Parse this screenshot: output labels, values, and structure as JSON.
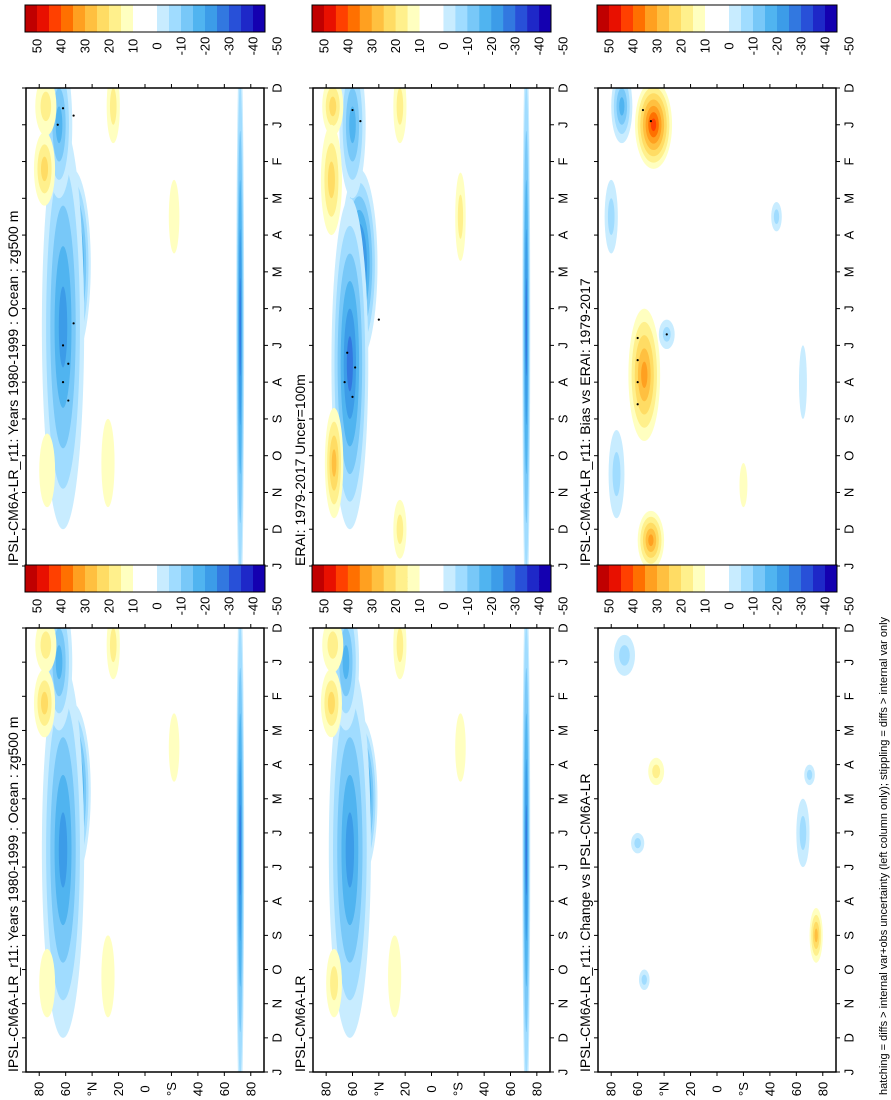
{
  "footnote": "hatching = diffs > internal var+obs uncertainty (left column only); stippling = diffs > internal var only",
  "colors": {
    "positive": [
      "#ffffc0",
      "#fff08c",
      "#ffdc64",
      "#ffc040",
      "#ffa020",
      "#ff7000",
      "#ff4000",
      "#e81000",
      "#c00000"
    ],
    "negative": [
      "#c8ecff",
      "#a0dcff",
      "#78c8f8",
      "#50b4f0",
      "#3c9ce8",
      "#3278e0",
      "#2850d8",
      "#1e28c8",
      "#1400b0"
    ]
  },
  "chart_data": [
    {
      "type": "heatmap",
      "title": "IPSL-CM6A-LR_r11: Years 1980-1999 : Ocean : zg500 m",
      "x_ticks": [
        "D",
        "J",
        "F",
        "M",
        "A",
        "M",
        "J",
        "J",
        "A",
        "S",
        "O",
        "N",
        "D",
        "J"
      ],
      "y_ticks": [
        "80",
        "60",
        "°N",
        "20",
        "0",
        "°S",
        "40",
        "60",
        "80"
      ],
      "colorbar_ticks": [
        "50",
        "40",
        "30",
        "20",
        "10",
        "0",
        "-10",
        "-20",
        "-30",
        "-40",
        "-50"
      ],
      "zlim": [
        -55,
        55
      ],
      "features": [
        {
          "month": 4.8,
          "lat": 55,
          "value": -40,
          "dmonth": 2.6,
          "dlat": 14
        },
        {
          "month": 6.5,
          "lat": 62,
          "value": -25,
          "dmonth": 5.5,
          "dlat": 16
        },
        {
          "month": 1.0,
          "lat": 65,
          "value": -20,
          "dmonth": 2.0,
          "dlat": 10
        },
        {
          "month": 0.5,
          "lat": 75,
          "value": 10,
          "dmonth": 0.8,
          "dlat": 8
        },
        {
          "month": 2.2,
          "lat": 76,
          "value": 15,
          "dmonth": 1.0,
          "dlat": 8
        },
        {
          "month": 10.4,
          "lat": 74,
          "value": 8,
          "dmonth": 1.0,
          "dlat": 6
        },
        {
          "month": 0.5,
          "lat": 24,
          "value": 10,
          "dmonth": 1.0,
          "dlat": 5
        },
        {
          "month": 10.2,
          "lat": 28,
          "value": 8,
          "dmonth": 1.2,
          "dlat": 5
        },
        {
          "month": 3.5,
          "lat": -22,
          "value": 8,
          "dmonth": 1.0,
          "dlat": 4
        },
        {
          "month": 6.5,
          "lat": -72,
          "value": -30,
          "dmonth": 8.0,
          "dlat": 3
        }
      ]
    },
    {
      "type": "heatmap",
      "title": "IPSL-CM6A-LR_r11: Years 1980-1999 : Ocean : zg500 m",
      "x_ticks": [
        "D",
        "J",
        "F",
        "M",
        "A",
        "M",
        "J",
        "J",
        "A",
        "S",
        "O",
        "N",
        "D",
        "J"
      ],
      "y_ticks": [
        "80",
        "60",
        "°N",
        "20",
        "0",
        "°S",
        "40",
        "60",
        "80"
      ],
      "colorbar_ticks": [
        "50",
        "40",
        "30",
        "20",
        "10",
        "0",
        "-10",
        "-20",
        "-30",
        "-40",
        "-50"
      ],
      "zlim": [
        -55,
        55
      ],
      "features": [
        {
          "month": 4.8,
          "lat": 55,
          "value": -40,
          "dmonth": 2.6,
          "dlat": 14
        },
        {
          "month": 6.5,
          "lat": 62,
          "value": -25,
          "dmonth": 5.5,
          "dlat": 16
        },
        {
          "month": 1.0,
          "lat": 65,
          "value": -20,
          "dmonth": 2.0,
          "dlat": 10
        },
        {
          "month": 0.5,
          "lat": 75,
          "value": 10,
          "dmonth": 0.8,
          "dlat": 8
        },
        {
          "month": 2.2,
          "lat": 76,
          "value": 15,
          "dmonth": 1.0,
          "dlat": 8
        },
        {
          "month": 10.4,
          "lat": 74,
          "value": 8,
          "dmonth": 1.0,
          "dlat": 6
        },
        {
          "month": 0.5,
          "lat": 24,
          "value": 10,
          "dmonth": 1.0,
          "dlat": 5
        },
        {
          "month": 10.2,
          "lat": 28,
          "value": 8,
          "dmonth": 1.2,
          "dlat": 5
        },
        {
          "month": 3.5,
          "lat": -22,
          "value": 8,
          "dmonth": 1.0,
          "dlat": 4
        },
        {
          "month": 6.5,
          "lat": -72,
          "value": -30,
          "dmonth": 8.0,
          "dlat": 3
        }
      ]
    },
    {
      "type": "heatmap",
      "title": "ERAI: 1979-2017 Uncer=100m",
      "x_ticks": [
        "D",
        "J",
        "F",
        "M",
        "A",
        "M",
        "J",
        "J",
        "A",
        "S",
        "O",
        "N",
        "D",
        "J"
      ],
      "y_ticks": [
        "80",
        "60",
        "°N",
        "20",
        "0",
        "°S",
        "40",
        "60",
        "80"
      ],
      "colorbar_ticks": [
        "50",
        "40",
        "30",
        "20",
        "10",
        "0",
        "-10",
        "-20",
        "-30",
        "-40",
        "-50"
      ],
      "zlim": [
        -55,
        55
      ],
      "features": [
        {
          "month": 4.8,
          "lat": 55,
          "value": -35,
          "dmonth": 2.6,
          "dlat": 14
        },
        {
          "month": 7.5,
          "lat": 62,
          "value": -30,
          "dmonth": 4.5,
          "dlat": 14
        },
        {
          "month": 1.0,
          "lat": 60,
          "value": -20,
          "dmonth": 2.0,
          "dlat": 10
        },
        {
          "month": 0.5,
          "lat": 75,
          "value": 15,
          "dmonth": 0.8,
          "dlat": 8
        },
        {
          "month": 2.5,
          "lat": 76,
          "value": 18,
          "dmonth": 1.5,
          "dlat": 8
        },
        {
          "month": 10.2,
          "lat": 74,
          "value": 22,
          "dmonth": 1.5,
          "dlat": 7
        },
        {
          "month": 0.5,
          "lat": 24,
          "value": 10,
          "dmonth": 1.0,
          "dlat": 5
        },
        {
          "month": 12.0,
          "lat": 24,
          "value": 10,
          "dmonth": 0.8,
          "dlat": 5
        },
        {
          "month": 3.5,
          "lat": -22,
          "value": 10,
          "dmonth": 1.2,
          "dlat": 4
        },
        {
          "month": 6.5,
          "lat": -72,
          "value": -30,
          "dmonth": 8.0,
          "dlat": 3
        }
      ]
    },
    {
      "type": "heatmap",
      "title": "IPSL-CM6A-LR",
      "x_ticks": [
        "D",
        "J",
        "F",
        "M",
        "A",
        "M",
        "J",
        "J",
        "A",
        "S",
        "O",
        "N",
        "D",
        "J"
      ],
      "y_ticks": [
        "80",
        "60",
        "°N",
        "20",
        "0",
        "°S",
        "40",
        "60",
        "80"
      ],
      "colorbar_ticks": [
        "50",
        "40",
        "30",
        "20",
        "10",
        "0",
        "-10",
        "-20",
        "-30",
        "-40",
        "-50"
      ],
      "zlim": [
        -55,
        55
      ],
      "features": [
        {
          "month": 5.0,
          "lat": 55,
          "value": -45,
          "dmonth": 2.4,
          "dlat": 14
        },
        {
          "month": 6.5,
          "lat": 62,
          "value": -25,
          "dmonth": 5.5,
          "dlat": 16
        },
        {
          "month": 1.0,
          "lat": 65,
          "value": -20,
          "dmonth": 2.0,
          "dlat": 10
        },
        {
          "month": 0.5,
          "lat": 75,
          "value": 10,
          "dmonth": 0.8,
          "dlat": 8
        },
        {
          "month": 2.2,
          "lat": 76,
          "value": 15,
          "dmonth": 1.0,
          "dlat": 8
        },
        {
          "month": 10.4,
          "lat": 74,
          "value": 10,
          "dmonth": 1.0,
          "dlat": 6
        },
        {
          "month": 0.5,
          "lat": 24,
          "value": 10,
          "dmonth": 1.0,
          "dlat": 5
        },
        {
          "month": 10.2,
          "lat": 28,
          "value": 8,
          "dmonth": 1.2,
          "dlat": 5
        },
        {
          "month": 3.5,
          "lat": -22,
          "value": 8,
          "dmonth": 1.0,
          "dlat": 4
        },
        {
          "month": 6.5,
          "lat": -72,
          "value": -30,
          "dmonth": 8.0,
          "dlat": 3
        }
      ]
    },
    {
      "type": "heatmap",
      "title": "IPSL-CM6A-LR_r11: Bias vs ERAI: 1979-2017",
      "x_ticks": [
        "D",
        "J",
        "F",
        "M",
        "A",
        "M",
        "J",
        "J",
        "A",
        "S",
        "O",
        "N",
        "D",
        "J"
      ],
      "y_ticks": [
        "80",
        "60",
        "°N",
        "20",
        "0",
        "°S",
        "40",
        "60",
        "80"
      ],
      "colorbar_ticks": [
        "50",
        "40",
        "30",
        "20",
        "10",
        "0",
        "-10",
        "-20",
        "-30",
        "-40",
        "-50"
      ],
      "zlim": [
        -55,
        55
      ],
      "features": [
        {
          "month": 1.0,
          "lat": 48,
          "value": 35,
          "dmonth": 1.2,
          "dlat": 14
        },
        {
          "month": 7.8,
          "lat": 55,
          "value": 25,
          "dmonth": 1.8,
          "dlat": 12
        },
        {
          "month": 12.3,
          "lat": 50,
          "value": 25,
          "dmonth": 0.8,
          "dlat": 10
        },
        {
          "month": 0.5,
          "lat": 72,
          "value": -20,
          "dmonth": 1.0,
          "dlat": 8
        },
        {
          "month": 3.5,
          "lat": 80,
          "value": -10,
          "dmonth": 1.0,
          "dlat": 5
        },
        {
          "month": 10.5,
          "lat": 76,
          "value": -12,
          "dmonth": 1.2,
          "dlat": 6
        },
        {
          "month": 6.7,
          "lat": 38,
          "value": -10,
          "dmonth": 0.4,
          "dlat": 6
        },
        {
          "month": 10.8,
          "lat": -20,
          "value": 8,
          "dmonth": 0.6,
          "dlat": 3
        },
        {
          "month": 3.5,
          "lat": -45,
          "value": -10,
          "dmonth": 0.4,
          "dlat": 4
        },
        {
          "month": 8.0,
          "lat": -65,
          "value": -8,
          "dmonth": 1.0,
          "dlat": 3
        }
      ]
    },
    {
      "type": "heatmap",
      "title": "IPSL-CM6A-LR_r11: Change vs IPSL-CM6A-LR",
      "x_ticks": [
        "D",
        "J",
        "F",
        "M",
        "A",
        "M",
        "J",
        "J",
        "A",
        "S",
        "O",
        "N",
        "D",
        "J"
      ],
      "y_ticks": [
        "80",
        "60",
        "°N",
        "20",
        "0",
        "°S",
        "40",
        "60",
        "80"
      ],
      "colorbar_ticks": [
        "50",
        "40",
        "30",
        "20",
        "10",
        "0",
        "-10",
        "-20",
        "-30",
        "-40",
        "-50"
      ],
      "zlim": [
        -55,
        55
      ],
      "features": [
        {
          "month": 0.8,
          "lat": 70,
          "value": -12,
          "dmonth": 0.6,
          "dlat": 8
        },
        {
          "month": 4.2,
          "lat": 46,
          "value": 10,
          "dmonth": 0.4,
          "dlat": 6
        },
        {
          "month": 6.3,
          "lat": 60,
          "value": -10,
          "dmonth": 0.3,
          "dlat": 5
        },
        {
          "month": 10.3,
          "lat": 55,
          "value": -10,
          "dmonth": 0.3,
          "dlat": 4
        },
        {
          "month": 9.0,
          "lat": -75,
          "value": 20,
          "dmonth": 0.8,
          "dlat": 5
        },
        {
          "month": 6.0,
          "lat": -65,
          "value": -10,
          "dmonth": 1.0,
          "dlat": 5
        },
        {
          "month": 4.3,
          "lat": -70,
          "value": -10,
          "dmonth": 0.3,
          "dlat": 4
        }
      ]
    }
  ]
}
